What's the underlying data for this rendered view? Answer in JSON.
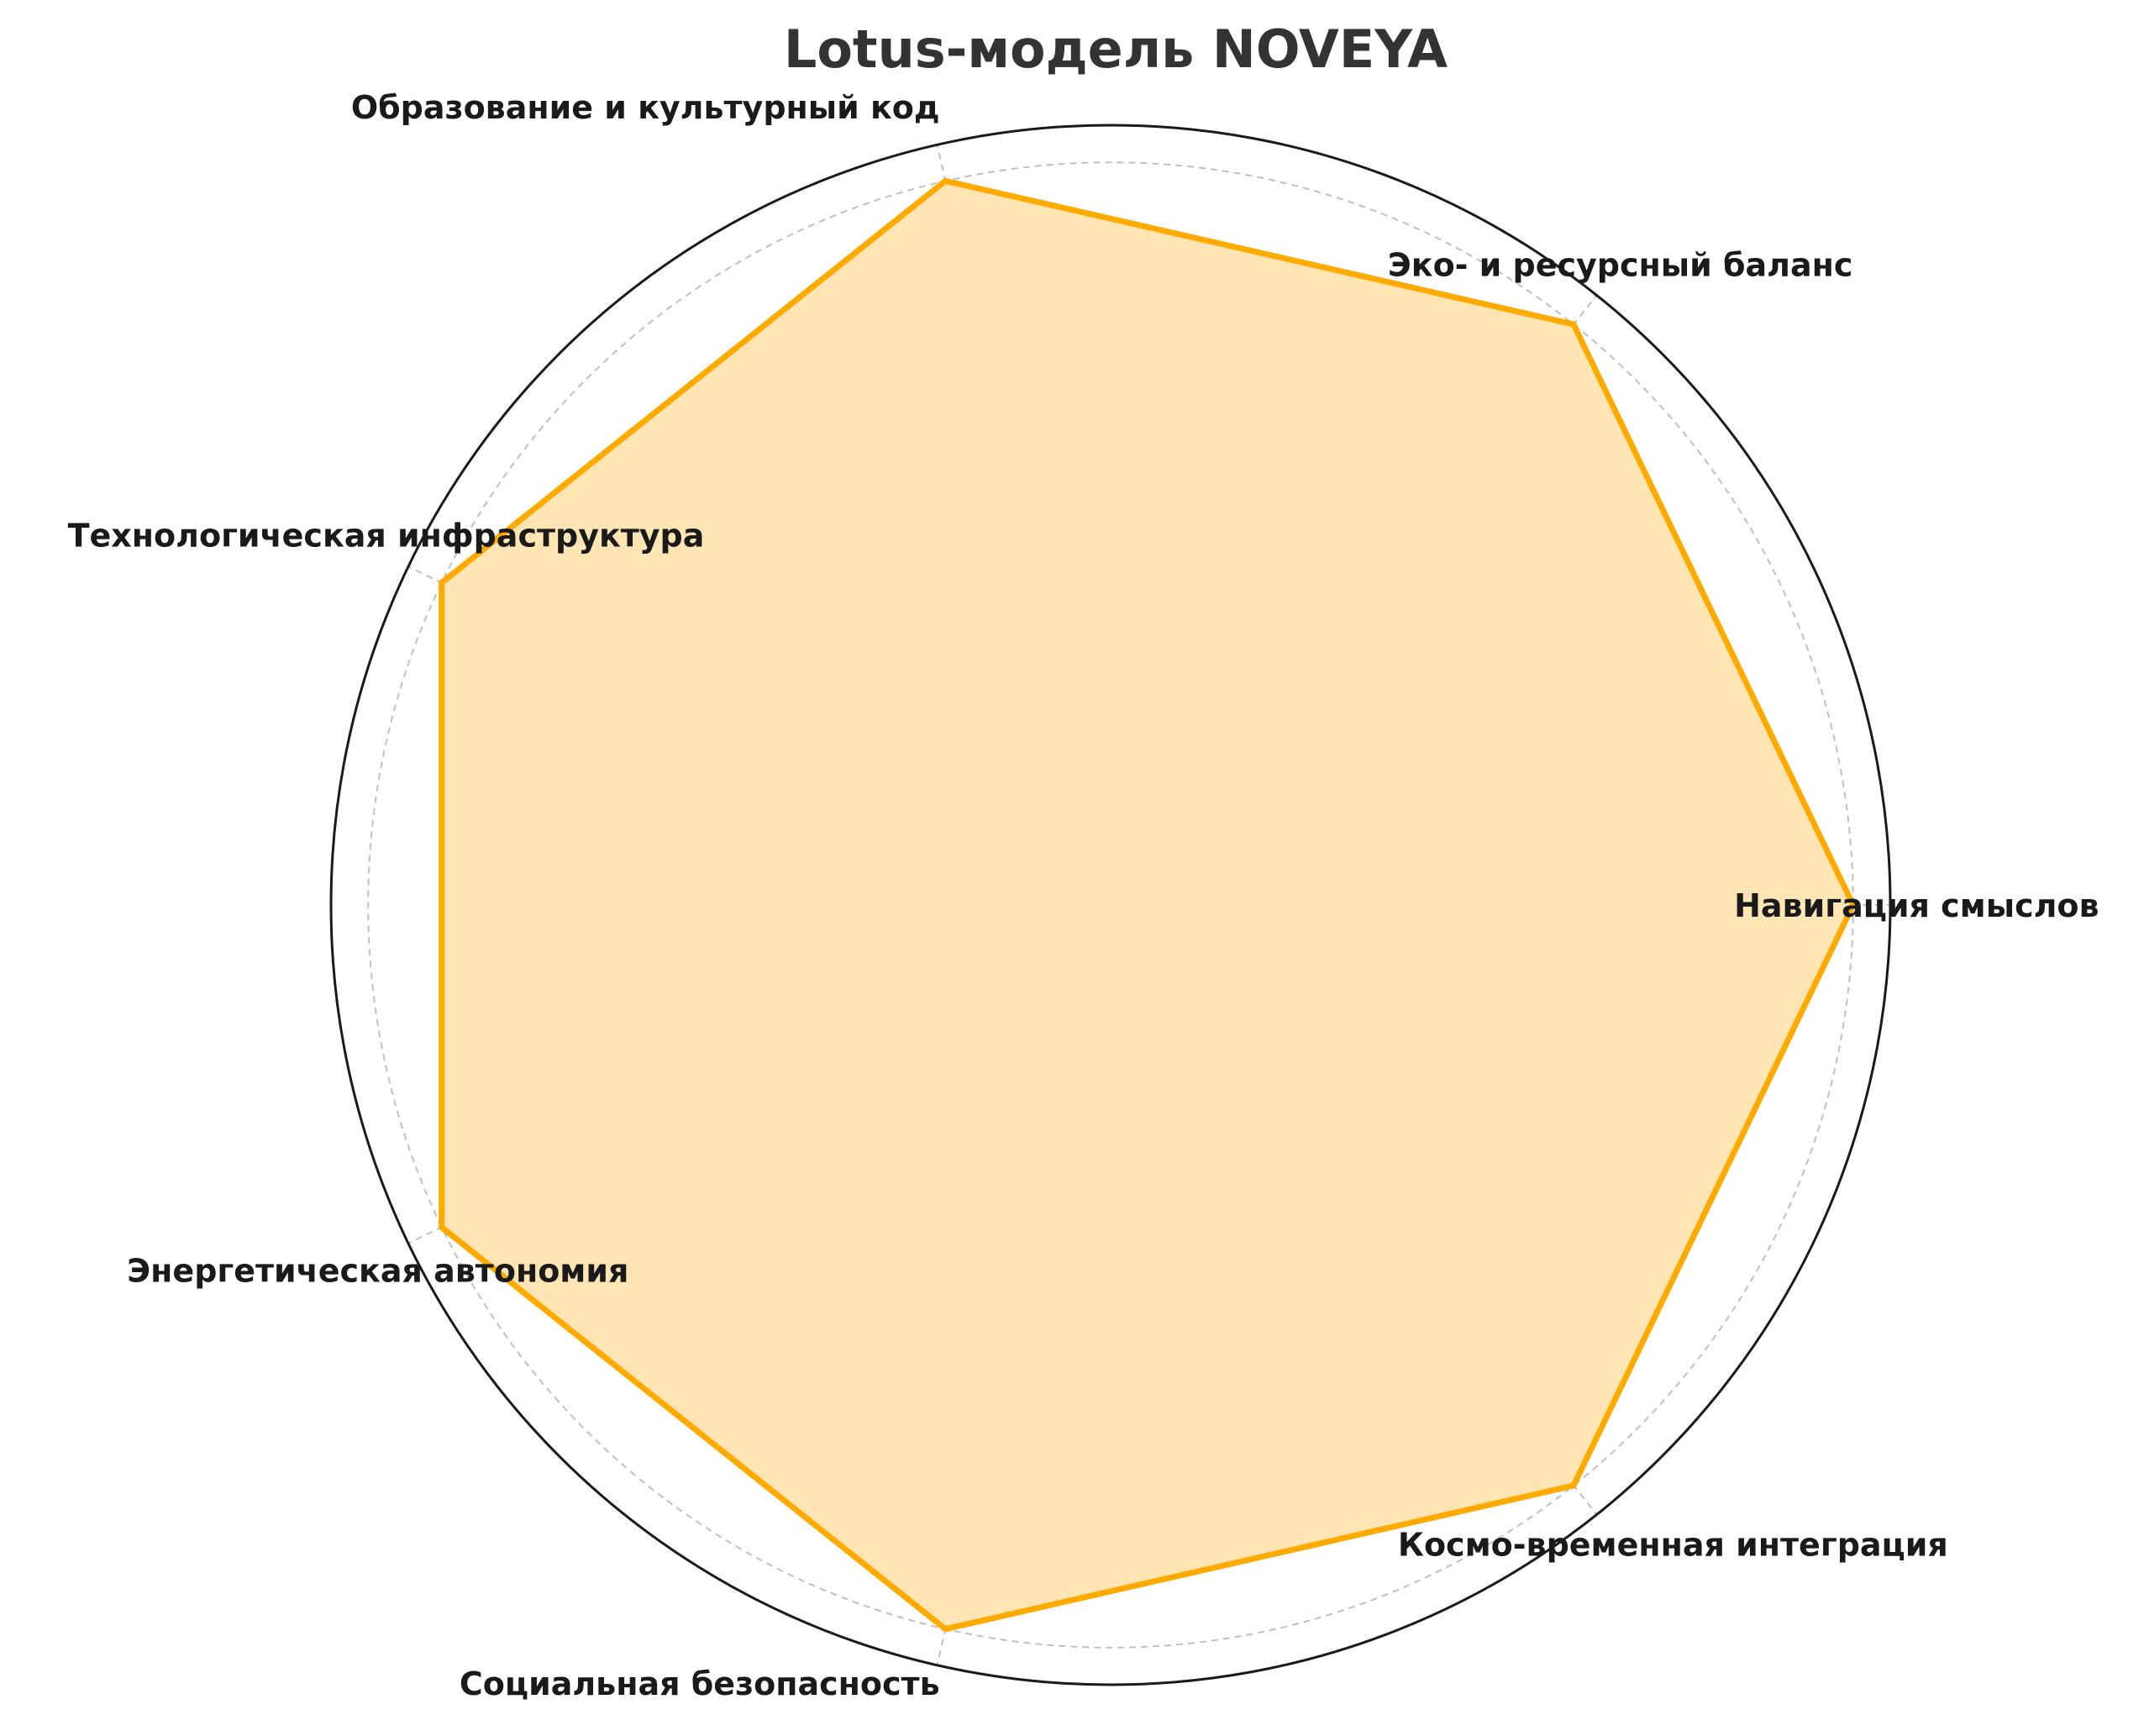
{
  "chart_data": {
    "type": "radar",
    "title": "Lotus-модель NOVEYA",
    "categories": [
      "Навигация смыслов",
      "Эко- и ресурсный баланс",
      "Образование и культурный код",
      "Технологическая инфраструктура",
      "Энергетическая автономия",
      "Социальная безопасность",
      "Космо-временная интеграция"
    ],
    "series": [
      {
        "values": [
          10,
          10,
          10,
          10,
          10,
          10,
          10
        ]
      }
    ],
    "rlim": [
      0,
      10.5
    ],
    "r_gridlines": [
      2,
      4,
      6,
      8,
      10
    ],
    "grid": true,
    "radial_tick_labels_visible": false,
    "colors": {
      "line": "#FFAA00",
      "fill": "#FFE5B3",
      "grid": "#c0c0c0",
      "frame": "#1a1a1a"
    }
  }
}
